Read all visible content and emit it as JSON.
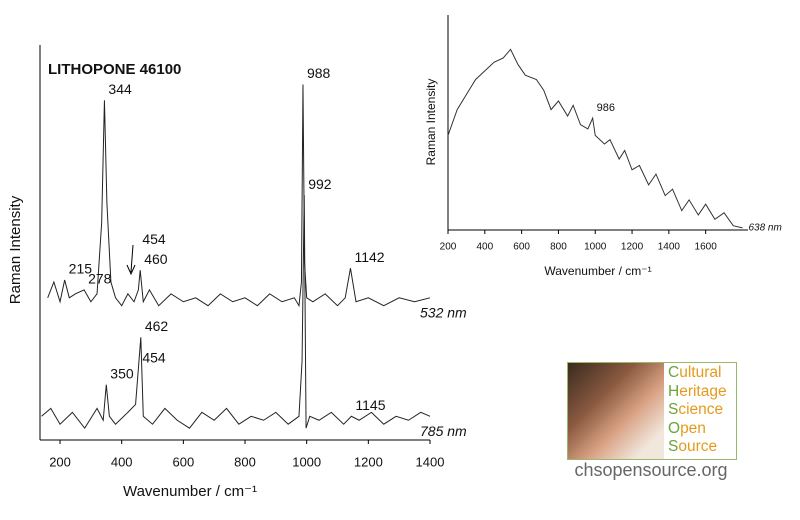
{
  "chart_data": [
    {
      "type": "line",
      "title": "LITHOPONE 46100",
      "xlabel": "Wavenumber / cm⁻¹",
      "ylabel": "Raman Intensity",
      "xlim": [
        135,
        1400
      ],
      "ylim": [
        0,
        100
      ],
      "xticks": [
        200,
        400,
        600,
        800,
        1000,
        1200,
        1400
      ],
      "series": [
        {
          "name": "532 nm",
          "color": "#222222",
          "x": [
            160,
            180,
            200,
            215,
            230,
            250,
            278,
            300,
            320,
            335,
            344,
            352,
            365,
            380,
            400,
            420,
            440,
            454,
            460,
            470,
            490,
            520,
            560,
            600,
            640,
            680,
            720,
            760,
            800,
            840,
            880,
            920,
            960,
            975,
            983,
            988,
            993,
            1000,
            1020,
            1060,
            1100,
            1125,
            1142,
            1160,
            1200,
            1250,
            1300,
            1350,
            1400
          ],
          "values": [
            36,
            40,
            35,
            40.5,
            36,
            37,
            38,
            35,
            37,
            55,
            86,
            60,
            40,
            36,
            34,
            37,
            35,
            38,
            43,
            35,
            38,
            34,
            37,
            35,
            36,
            34,
            37,
            35,
            36,
            34,
            37,
            35,
            36,
            34,
            40,
            90,
            45,
            36,
            35,
            37,
            34,
            36,
            43.5,
            35,
            36,
            34,
            36,
            35,
            36
          ]
        },
        {
          "name": "785 nm",
          "color": "#222222",
          "x": [
            140,
            170,
            200,
            240,
            280,
            320,
            340,
            350,
            360,
            380,
            420,
            445,
            454,
            462,
            470,
            500,
            540,
            580,
            620,
            660,
            700,
            740,
            780,
            820,
            860,
            900,
            940,
            975,
            985,
            992,
            998,
            1010,
            1040,
            1080,
            1120,
            1145,
            1170,
            1210,
            1250,
            1290,
            1330,
            1370,
            1400
          ],
          "values": [
            6,
            8,
            4,
            7,
            3,
            8,
            5,
            14,
            6,
            4,
            7,
            9,
            18,
            26,
            6,
            4,
            8,
            5,
            3,
            7,
            5,
            8,
            4,
            6,
            5,
            7,
            4,
            6,
            20,
            62,
            3,
            6,
            5,
            7,
            4,
            6,
            5,
            7,
            4,
            6,
            5,
            7,
            6
          ]
        }
      ],
      "annotations": [
        {
          "text": "344",
          "x": 344,
          "y": 86
        },
        {
          "text": "215",
          "x": 215,
          "y": 40.5
        },
        {
          "text": "278",
          "x": 278,
          "y": 38
        },
        {
          "text": "454",
          "x": 454,
          "y": 48
        },
        {
          "text": "460",
          "x": 460,
          "y": 43
        },
        {
          "text": "988",
          "x": 988,
          "y": 90
        },
        {
          "text": "992",
          "x": 992,
          "y": 62
        },
        {
          "text": "1142",
          "x": 1142,
          "y": 43.5
        },
        {
          "text": "462",
          "x": 462,
          "y": 26
        },
        {
          "text": "454",
          "x": 454,
          "y": 18
        },
        {
          "text": "350",
          "x": 350,
          "y": 14
        },
        {
          "text": "1145",
          "x": 1145,
          "y": 6
        }
      ]
    },
    {
      "type": "line",
      "xlabel": "Wavenumber / cm⁻¹",
      "ylabel": "Raman Intensity",
      "xlim": [
        200,
        1830
      ],
      "ylim": [
        0,
        100
      ],
      "xticks": [
        200,
        400,
        600,
        800,
        1000,
        1200,
        1400,
        1600
      ],
      "series": [
        {
          "name": "638 nm",
          "color": "#333333",
          "x": [
            200,
            250,
            300,
            350,
            400,
            450,
            500,
            540,
            580,
            620,
            680,
            720,
            760,
            800,
            850,
            880,
            920,
            960,
            986,
            1000,
            1050,
            1080,
            1130,
            1160,
            1200,
            1240,
            1290,
            1330,
            1380,
            1420,
            1470,
            1510,
            1560,
            1600,
            1650,
            1700,
            1750,
            1800
          ],
          "values": [
            44,
            56,
            63,
            70,
            74,
            78,
            80,
            84,
            77,
            72,
            70,
            65,
            56,
            60,
            53,
            58,
            49,
            47,
            52,
            44,
            40,
            42,
            33,
            37,
            28,
            30,
            21,
            26,
            16,
            19,
            9,
            14,
            7,
            12,
            5,
            8,
            2,
            1
          ]
        }
      ],
      "annotations": [
        {
          "text": "986",
          "x": 986,
          "y": 52
        }
      ]
    }
  ],
  "logo": {
    "lines": [
      "Cultural",
      "Heritage",
      "Science",
      "Open",
      "Source"
    ],
    "url": "chsopensource.org"
  }
}
